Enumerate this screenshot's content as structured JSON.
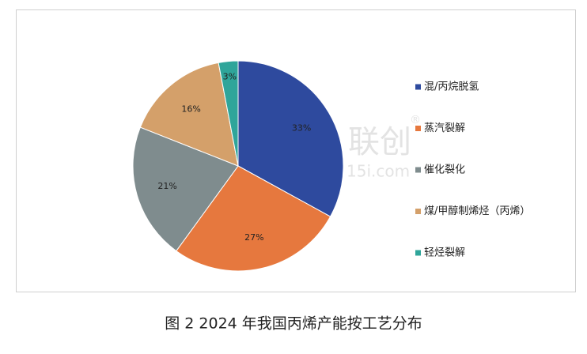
{
  "chart_data": {
    "type": "pie",
    "categories": [
      "混/丙烷脱氢",
      "蒸汽裂解",
      "催化裂化",
      "煤/甲醇制烯烃（丙烯）",
      "轻烃裂解"
    ],
    "values": [
      33,
      27,
      21,
      16,
      3
    ],
    "value_labels": [
      "33%",
      "27%",
      "21%",
      "16%",
      "3%"
    ],
    "colors": [
      "#2e4a9e",
      "#e6783e",
      "#7f8c8e",
      "#d4a06a",
      "#2fa59a"
    ],
    "legend": "right",
    "caption": "图 2  2024 年我国丙烯产能按工艺分布",
    "watermark": [
      "联创",
      "15i.com",
      "®"
    ]
  }
}
